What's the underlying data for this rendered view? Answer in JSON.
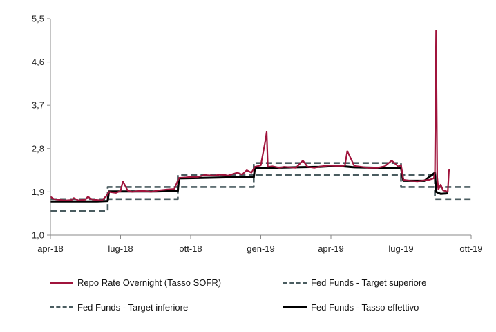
{
  "chart_data": {
    "type": "line",
    "title": "",
    "xlabel": "",
    "ylabel": "",
    "x_ticks": [
      "apr-18",
      "lug-18",
      "ott-18",
      "gen-19",
      "apr-19",
      "lug-19",
      "ott-19"
    ],
    "y_ticks": [
      "1,0",
      "1,9",
      "2,8",
      "3,7",
      "4,6",
      "5,5"
    ],
    "ylim": [
      1.0,
      5.5
    ],
    "xlim": [
      0,
      18
    ],
    "x_unit": "months since apr-18",
    "legend": {
      "repo": "Repo Rate Overnight (Tasso SOFR)",
      "upper": "Fed Funds - Target superiore",
      "lower": "Fed Funds - Target inferiore",
      "effective": "Fed Funds - Tasso effettivo"
    },
    "colors": {
      "repo": "#a0143c",
      "upper": "#4a5c60",
      "lower": "#4a5c60",
      "effective": "#000000",
      "axis": "#888888"
    },
    "series": [
      {
        "name": "Fed Funds - Target superiore",
        "key": "upper",
        "style": "dashed",
        "x": [
          0,
          2.45,
          2.45,
          5.45,
          5.45,
          8.7,
          8.7,
          15.0,
          15.0,
          16.45,
          16.45,
          18.0
        ],
        "y": [
          1.75,
          1.75,
          2.0,
          2.0,
          2.25,
          2.25,
          2.5,
          2.5,
          2.25,
          2.25,
          2.0,
          2.0
        ]
      },
      {
        "name": "Fed Funds - Target inferiore",
        "key": "lower",
        "style": "dashed",
        "x": [
          0,
          2.45,
          2.45,
          5.45,
          5.45,
          8.7,
          8.7,
          15.0,
          15.0,
          16.45,
          16.45,
          18.0
        ],
        "y": [
          1.5,
          1.5,
          1.75,
          1.75,
          2.0,
          2.0,
          2.25,
          2.25,
          2.0,
          2.0,
          1.75,
          1.75
        ]
      },
      {
        "name": "Fed Funds - Tasso effettivo",
        "key": "effective",
        "style": "solid",
        "x": [
          0,
          1.0,
          2.0,
          2.45,
          2.5,
          3.5,
          4.5,
          5.45,
          5.5,
          6.5,
          7.5,
          8.5,
          8.7,
          8.75,
          9.5,
          10.5,
          11.5,
          12.3,
          13.0,
          14.0,
          14.9,
          15.0,
          15.1,
          16.0,
          16.45,
          16.5,
          16.7,
          17.0
        ],
        "y": [
          1.7,
          1.7,
          1.7,
          1.71,
          1.91,
          1.91,
          1.91,
          1.92,
          2.18,
          2.19,
          2.2,
          2.2,
          2.2,
          2.4,
          2.4,
          2.41,
          2.42,
          2.44,
          2.41,
          2.4,
          2.4,
          2.4,
          2.13,
          2.13,
          2.3,
          1.9,
          1.86,
          1.87
        ]
      },
      {
        "name": "Repo Rate Overnight (Tasso SOFR)",
        "key": "repo",
        "style": "solid",
        "x": [
          0,
          0.15,
          0.3,
          0.6,
          0.9,
          1.0,
          1.2,
          1.5,
          1.6,
          1.8,
          2.0,
          2.2,
          2.4,
          2.5,
          2.8,
          3.0,
          3.1,
          3.3,
          3.5,
          3.8,
          4.0,
          4.3,
          4.6,
          5.0,
          5.3,
          5.5,
          5.8,
          6.0,
          6.3,
          6.6,
          7.0,
          7.3,
          7.6,
          8.0,
          8.2,
          8.4,
          8.6,
          8.75,
          9.0,
          9.2,
          9.25,
          9.3,
          9.5,
          9.8,
          10.0,
          10.5,
          10.8,
          11.0,
          11.3,
          11.6,
          11.9,
          12.2,
          12.5,
          12.6,
          12.7,
          13.0,
          13.3,
          13.6,
          14.0,
          14.3,
          14.6,
          14.9,
          15.0,
          15.1,
          15.4,
          15.7,
          16.0,
          16.2,
          16.4,
          16.45,
          16.5,
          16.55,
          16.6,
          16.65,
          16.7,
          16.8,
          16.9,
          17.0,
          17.05,
          17.1
        ],
        "y": [
          1.8,
          1.75,
          1.74,
          1.72,
          1.73,
          1.77,
          1.72,
          1.74,
          1.8,
          1.74,
          1.73,
          1.72,
          1.82,
          1.9,
          1.88,
          1.92,
          2.12,
          1.93,
          1.9,
          1.92,
          1.92,
          1.9,
          1.93,
          1.95,
          1.96,
          2.19,
          2.2,
          2.21,
          2.21,
          2.25,
          2.24,
          2.26,
          2.24,
          2.3,
          2.26,
          2.35,
          2.3,
          2.42,
          2.45,
          2.98,
          3.15,
          2.42,
          2.43,
          2.4,
          2.42,
          2.4,
          2.55,
          2.42,
          2.4,
          2.43,
          2.45,
          2.44,
          2.44,
          2.45,
          2.75,
          2.44,
          2.42,
          2.4,
          2.4,
          2.43,
          2.55,
          2.42,
          2.46,
          2.15,
          2.13,
          2.12,
          2.14,
          2.15,
          2.18,
          2.3,
          5.25,
          2.2,
          1.95,
          2.0,
          2.05,
          1.93,
          1.92,
          1.9,
          2.35,
          2.35
        ]
      }
    ]
  }
}
